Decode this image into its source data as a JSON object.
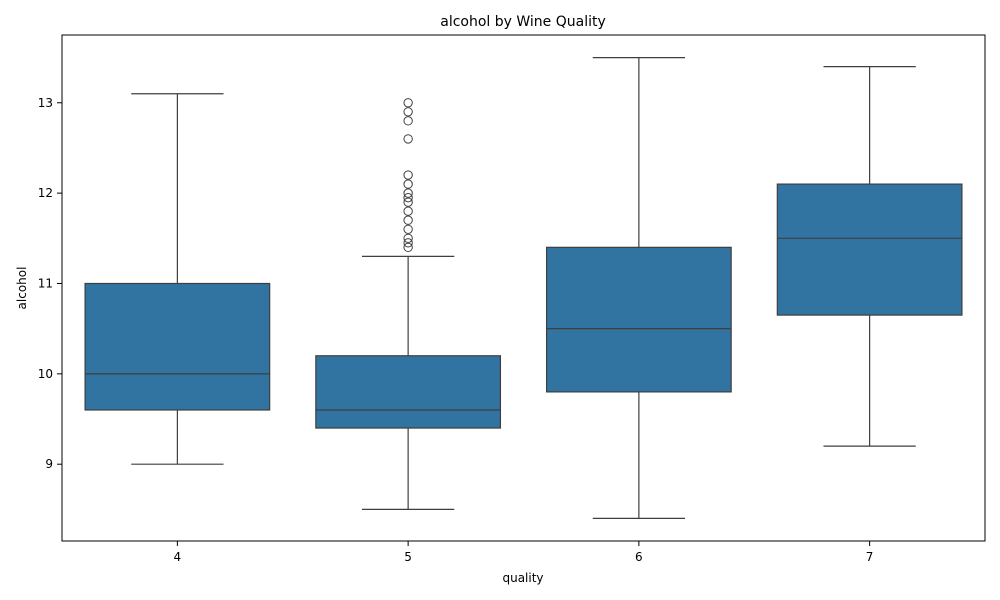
{
  "chart_data": {
    "type": "box",
    "title": "alcohol by Wine Quality",
    "xlabel": "quality",
    "ylabel": "alcohol",
    "ylim": [
      8.15,
      13.75
    ],
    "yticks": [
      9,
      10,
      11,
      12,
      13
    ],
    "grid": false,
    "categories": [
      "4",
      "5",
      "6",
      "7"
    ],
    "boxes": [
      {
        "category": "4",
        "whisker_low": 9.0,
        "q1": 9.6,
        "median": 10.0,
        "q3": 11.0,
        "whisker_high": 13.1,
        "outliers": []
      },
      {
        "category": "5",
        "whisker_low": 8.5,
        "q1": 9.4,
        "median": 9.6,
        "q3": 10.2,
        "whisker_high": 11.3,
        "outliers": [
          11.4,
          11.45,
          11.5,
          11.6,
          11.7,
          11.8,
          11.9,
          11.95,
          12.0,
          12.1,
          12.2,
          12.6,
          12.8,
          12.9,
          13.0
        ]
      },
      {
        "category": "6",
        "whisker_low": 8.4,
        "q1": 9.8,
        "median": 10.5,
        "q3": 11.4,
        "whisker_high": 13.5,
        "outliers": []
      },
      {
        "category": "7",
        "whisker_low": 9.2,
        "q1": 10.65,
        "median": 11.5,
        "q3": 12.1,
        "whisker_high": 13.4,
        "outliers": []
      }
    ],
    "colors": {
      "box_fill": "#3274a1",
      "line": "#3f3f3f"
    }
  }
}
